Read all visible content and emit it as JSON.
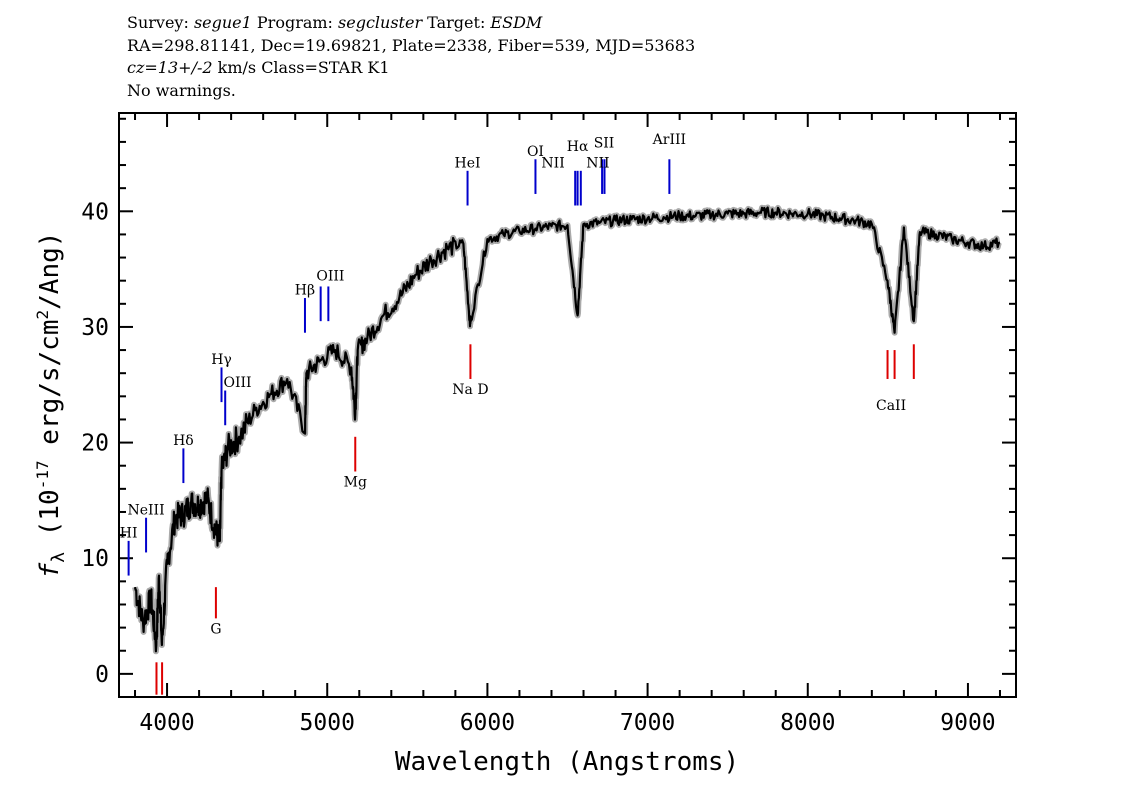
{
  "header": {
    "line1": {
      "survey_label": "Survey: ",
      "survey": "segue1",
      "program_label": " Program: ",
      "program": "segcluster",
      "target_label": " Target: ",
      "target": "ESDM"
    },
    "line2": "RA=298.81141, Dec=19.69821, Plate=2338, Fiber=539, MJD=53683",
    "line3": {
      "cz": "cz=13+/-2",
      "rest": " km/s Class=STAR K1"
    },
    "line4": "No warnings."
  },
  "chart_data": {
    "type": "line",
    "xlabel": "Wavelength (Angstroms)",
    "ylabel": "f_λ (10^-17 erg/s/cm^2/Ang)",
    "xlim": [
      3700,
      9300
    ],
    "ylim": [
      -2,
      48.5
    ],
    "x_ticks": [
      4000,
      5000,
      6000,
      7000,
      8000,
      9000
    ],
    "y_ticks": [
      0,
      10,
      20,
      30,
      40
    ],
    "series": [
      {
        "x": [
          3800,
          3850,
          3900,
          3933,
          3950,
          3968,
          4000,
          4050,
          4102,
          4150,
          4200,
          4250,
          4300,
          4330,
          4340,
          4380,
          4450,
          4550,
          4650,
          4750,
          4861,
          4870,
          4950,
          5050,
          5150,
          5175,
          5190,
          5250,
          5350,
          5450,
          5550,
          5650,
          5750,
          5850,
          5890,
          5895,
          6000,
          6100,
          6200,
          6300,
          6400,
          6500,
          6563,
          6600,
          6700,
          6800,
          6900,
          7000,
          7100,
          7200,
          7300,
          7400,
          7500,
          7600,
          7700,
          7800,
          7900,
          8000,
          8100,
          8200,
          8300,
          8400,
          8498,
          8542,
          8600,
          8662,
          8700,
          8800,
          8900,
          9000,
          9100,
          9200
        ],
        "y": [
          7.5,
          4.5,
          6.5,
          2.5,
          8.5,
          2.5,
          9.5,
          13.5,
          13.8,
          14.8,
          14.6,
          15.2,
          12.5,
          11.5,
          17.5,
          19.5,
          20.5,
          22.8,
          24.2,
          25.5,
          21.0,
          26.0,
          27.0,
          28.0,
          26.5,
          22.5,
          28.0,
          29.0,
          31.0,
          32.5,
          34.5,
          35.8,
          36.8,
          37.2,
          30.5,
          30.5,
          37.6,
          38.0,
          38.3,
          38.5,
          38.7,
          38.8,
          31.0,
          38.9,
          39.0,
          39.2,
          39.3,
          39.4,
          39.5,
          39.6,
          39.6,
          39.7,
          39.8,
          39.8,
          39.9,
          39.9,
          39.8,
          39.8,
          39.6,
          39.4,
          39.2,
          38.9,
          34.0,
          29.5,
          38.6,
          30.5,
          38.2,
          38.0,
          37.6,
          37.3,
          37.0,
          37.3
        ]
      }
    ],
    "emission_lines": [
      {
        "name": "HI",
        "x": 3760,
        "y1": 8.5,
        "y2": 11.5,
        "label_x": 3760,
        "label_y": 11.8
      },
      {
        "name": "NeIII",
        "x": 3869,
        "y1": 10.5,
        "y2": 13.5,
        "label_x": 3869,
        "label_y": 13.8
      },
      {
        "name": "Hδ",
        "x": 4102,
        "y1": 16.5,
        "y2": 19.5,
        "label_x": 4102,
        "label_y": 19.8
      },
      {
        "name": "Hγ",
        "x": 4340,
        "y1": 23.5,
        "y2": 26.5,
        "label_x": 4340,
        "label_y": 26.8
      },
      {
        "name": "OIII",
        "x": 4363,
        "y1": 21.5,
        "y2": 24.5,
        "label_x": 4440,
        "label_y": 24.8
      },
      {
        "name": "Hβ",
        "x": 4861,
        "y1": 29.5,
        "y2": 32.5,
        "label_x": 4861,
        "label_y": 32.8
      },
      {
        "name": "OIII",
        "x": 4959,
        "y1": 30.5,
        "y2": 33.5
      },
      {
        "name": "OIII",
        "x": 5007,
        "y1": 30.5,
        "y2": 33.5,
        "label_x": 5020,
        "label_y": 34.0
      },
      {
        "name": "HeI",
        "x": 5876,
        "y1": 40.5,
        "y2": 43.5,
        "label_x": 5876,
        "label_y": 43.8
      },
      {
        "name": "OI",
        "x": 6300,
        "y1": 41.5,
        "y2": 44.5,
        "label_x": 6300,
        "label_y": 44.8
      },
      {
        "name": "NII",
        "x": 6548,
        "y1": 40.5,
        "y2": 43.5,
        "label_x": 6410,
        "label_y": 43.8
      },
      {
        "name": "Hα",
        "x": 6563,
        "y1": 40.5,
        "y2": 43.5,
        "label_x": 6563,
        "label_y": 45.2
      },
      {
        "name": "NII",
        "x": 6583,
        "y1": 40.5,
        "y2": 43.5
      },
      {
        "name": "SII",
        "x": 6716,
        "y1": 41.5,
        "y2": 44.5,
        "label_x": 6728,
        "label_y": 45.5
      },
      {
        "name": "NII",
        "x": 6731,
        "y1": 41.5,
        "y2": 44.5,
        "label_x": 6690,
        "label_y": 43.8
      },
      {
        "name": "ArIII",
        "x": 7136,
        "y1": 41.5,
        "y2": 44.5,
        "label_x": 7136,
        "label_y": 45.8
      }
    ],
    "absorption_lines": [
      {
        "name": "",
        "x": 3934,
        "y1": -1.8,
        "y2": 1.0
      },
      {
        "name": "",
        "x": 3969,
        "y1": -1.8,
        "y2": 1.0
      },
      {
        "name": "G",
        "x": 4305,
        "y1": 4.8,
        "y2": 7.5,
        "label_x": 4305,
        "label_y": 3.5
      },
      {
        "name": "Mg",
        "x": 5175,
        "y1": 17.5,
        "y2": 20.5,
        "label_x": 5175,
        "label_y": 16.2
      },
      {
        "name": "Na D",
        "x": 5894,
        "y1": 25.5,
        "y2": 28.5,
        "label_x": 5894,
        "label_y": 24.2
      },
      {
        "name": "",
        "x": 8498,
        "y1": 25.5,
        "y2": 28.0
      },
      {
        "name": "CaII",
        "x": 8542,
        "y1": 25.5,
        "y2": 28.0,
        "label_x": 8520,
        "label_y": 22.8
      },
      {
        "name": "",
        "x": 8662,
        "y1": 25.5,
        "y2": 28.5
      }
    ],
    "colors": {
      "spectrum": "#000000",
      "error_band": "#aaaaaa",
      "emission": "#0000cc",
      "absorption": "#dd0000"
    }
  }
}
